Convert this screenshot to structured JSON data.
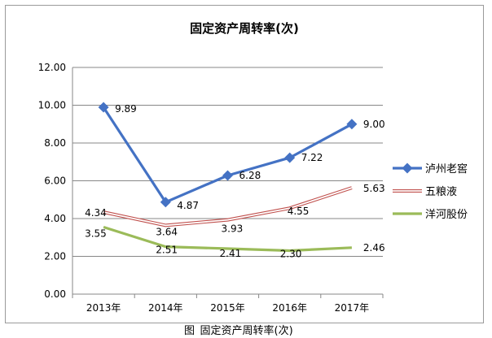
{
  "chart_data": {
    "type": "line",
    "title": "固定资产周转率(次)",
    "categories": [
      "2013年",
      "2014年",
      "2015年",
      "2016年",
      "2017年"
    ],
    "ylim": [
      0,
      12
    ],
    "yticks": [
      "0.00",
      "2.00",
      "4.00",
      "6.00",
      "8.00",
      "10.00",
      "12.00"
    ],
    "grid": true,
    "legend_position": "right",
    "series": [
      {
        "name": "泸州老窖",
        "values": [
          9.89,
          4.87,
          6.28,
          7.22,
          9.0
        ],
        "labels": [
          "9.89",
          "4.87",
          "6.28",
          "7.22",
          "9.00"
        ],
        "color": "#4472C4",
        "marker": "diamond"
      },
      {
        "name": "五粮液",
        "values": [
          4.34,
          3.64,
          3.93,
          4.55,
          5.63
        ],
        "labels": [
          "4.34",
          "3.64",
          "3.93",
          "4.55",
          "5.63"
        ],
        "color": "#C0504D",
        "marker": "none"
      },
      {
        "name": "洋河股份",
        "values": [
          3.55,
          2.51,
          2.41,
          2.3,
          2.46
        ],
        "labels": [
          "3.55",
          "2.51",
          "2.41",
          "2.30",
          "2.46"
        ],
        "color": "#9BBB59",
        "marker": "none"
      }
    ]
  },
  "caption": "图   固定资产周转率(次)"
}
